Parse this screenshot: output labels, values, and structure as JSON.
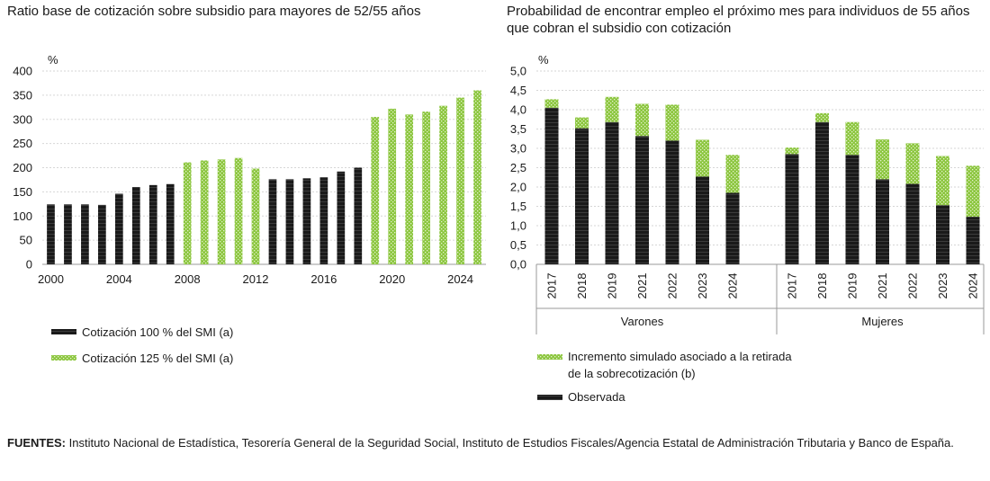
{
  "footer": {
    "sources_label": "FUENTES:",
    "sources_text": "Instituto Nacional de Estadística, Tesorería General de la Seguridad Social, Instituto de Estudios Fiscales/Agencia Estatal de Administración Tributaria y Banco de España."
  },
  "colors": {
    "black_bar": "#1a1a1a",
    "green_bar": "#8cc63f",
    "axis": "#999999"
  },
  "chart_data": [
    {
      "type": "bar",
      "title": "Ratio base de cotización sobre subsidio para mayores de 52/55 años",
      "ylabel": "%",
      "ylim": [
        0,
        400
      ],
      "yticks": [
        "0",
        "50",
        "100",
        "150",
        "200",
        "250",
        "300",
        "350",
        "400"
      ],
      "xticks": [
        "2000",
        "2004",
        "2008",
        "2012",
        "2016",
        "2020",
        "2024"
      ],
      "grid": true,
      "legend_position": "bottom",
      "series": [
        {
          "name": "Cotización 100 % del SMI (a)",
          "color": "#1a1a1a",
          "x": [
            2000,
            2001,
            2002,
            2003,
            2004,
            2005,
            2006,
            2007,
            2013,
            2014,
            2015,
            2016,
            2017,
            2018
          ],
          "values": [
            124,
            124,
            124,
            123,
            146,
            160,
            164,
            166,
            176,
            176,
            178,
            180,
            192,
            200
          ]
        },
        {
          "name": "Cotización 125 % del SMI (a)",
          "color": "#8cc63f",
          "x": [
            2008,
            2009,
            2010,
            2011,
            2012,
            2019,
            2020,
            2021,
            2022,
            2023,
            2024,
            2025
          ],
          "values": [
            211,
            215,
            217,
            220,
            198,
            305,
            322,
            310,
            316,
            328,
            345,
            360
          ]
        }
      ]
    },
    {
      "type": "bar",
      "stacked": true,
      "title": "Probabilidad de encontrar empleo el próximo mes para individuos de 55 años que cobran el subsidio con cotización",
      "ylabel": "%",
      "ylim": [
        0,
        5
      ],
      "yticks": [
        "0,0",
        "0,5",
        "1,0",
        "1,5",
        "2,0",
        "2,5",
        "3,0",
        "3,5",
        "4,0",
        "4,5",
        "5,0"
      ],
      "grid": true,
      "legend_position": "bottom",
      "groups": [
        {
          "label": "Varones",
          "categories": [
            "2017",
            "2018",
            "2019",
            "2021",
            "2022",
            "2023",
            "2024"
          ]
        },
        {
          "label": "Mujeres",
          "categories": [
            "2017",
            "2018",
            "2019",
            "2021",
            "2022",
            "2023",
            "2024"
          ]
        }
      ],
      "series": [
        {
          "name": "Observada",
          "color": "#1a1a1a",
          "values": [
            4.05,
            3.52,
            3.68,
            3.32,
            3.2,
            2.27,
            1.85,
            2.85,
            3.68,
            2.83,
            2.2,
            2.08,
            1.53,
            1.23
          ]
        },
        {
          "name": "Incremento simulado asociado a la retirada de la sobrecotización (b)",
          "color": "#8cc63f",
          "values": [
            0.22,
            0.28,
            0.65,
            0.83,
            0.93,
            0.95,
            0.98,
            0.17,
            0.23,
            0.85,
            1.03,
            1.05,
            1.27,
            1.32
          ]
        }
      ],
      "legend_order": [
        1,
        0
      ]
    }
  ]
}
